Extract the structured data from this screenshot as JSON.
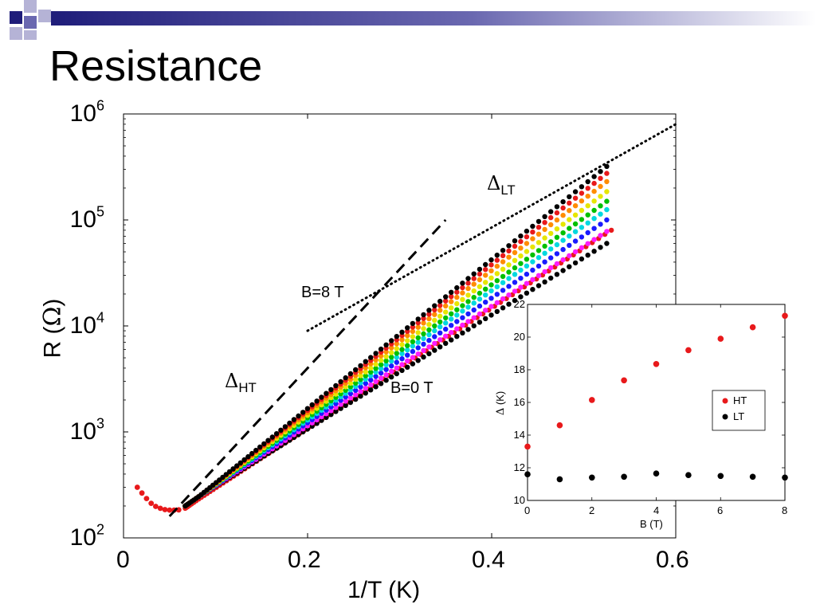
{
  "slide": {
    "title": "Resistance",
    "header_colors": [
      "#1f1d7a",
      "#6a68b0",
      "#b5b3d6"
    ]
  },
  "chart_data": [
    {
      "type": "scatter",
      "title": "",
      "xlabel": "1/T (K)",
      "ylabel_text": "R (",
      "ylabel_symbol": "Ω",
      "ylabel_close": ")",
      "xlim": [
        0,
        0.6
      ],
      "ylim": [
        100,
        1000000
      ],
      "y_scale": "log",
      "grid": false,
      "x_ticks": [
        "0",
        "0.2",
        "0.4",
        "0.6"
      ],
      "x_tick_values": [
        0,
        0.2,
        0.4,
        0.6
      ],
      "y_ticks": [
        {
          "base": "10",
          "exp": "2",
          "value": 100
        },
        {
          "base": "10",
          "exp": "3",
          "value": 1000
        },
        {
          "base": "10",
          "exp": "4",
          "value": 10000
        },
        {
          "base": "10",
          "exp": "5",
          "value": 100000
        },
        {
          "base": "10",
          "exp": "6",
          "value": 1000000
        }
      ],
      "annotations": {
        "b8": "B=8 T",
        "b0": "B=0 T",
        "delta_symbol": "Δ",
        "ht": "HT",
        "lt": "LT"
      },
      "fit_lines": [
        {
          "style": "dotted",
          "x": [
            0.2,
            0.6
          ],
          "y": [
            9000,
            800000
          ]
        },
        {
          "style": "dashed",
          "x": [
            0.05,
            0.35
          ],
          "y": [
            160,
            100000
          ]
        }
      ],
      "low_t_upturn": {
        "color": "#e8191b",
        "x": [
          0.015,
          0.02,
          0.025,
          0.03,
          0.035,
          0.04,
          0.045,
          0.05,
          0.055,
          0.06
        ],
        "y": [
          300,
          265,
          235,
          212,
          198,
          190,
          185,
          183,
          183,
          184
        ]
      },
      "series": [
        {
          "color": "#000000",
          "x_start": 0.067,
          "x_end": 0.525,
          "r_start": 200,
          "r_end": 320000
        },
        {
          "color": "#e8191b",
          "x_start": 0.067,
          "x_end": 0.525,
          "r_start": 200,
          "r_end": 275000
        },
        {
          "color": "#ff8c00",
          "x_start": 0.067,
          "x_end": 0.525,
          "r_start": 200,
          "r_end": 230000
        },
        {
          "color": "#e6e600",
          "x_start": 0.067,
          "x_end": 0.525,
          "r_start": 200,
          "r_end": 185000
        },
        {
          "color": "#00c000",
          "x_start": 0.067,
          "x_end": 0.525,
          "r_start": 200,
          "r_end": 150000
        },
        {
          "color": "#00d8e0",
          "x_start": 0.067,
          "x_end": 0.525,
          "r_start": 200,
          "r_end": 125000
        },
        {
          "color": "#1a1aff",
          "x_start": 0.067,
          "x_end": 0.525,
          "r_start": 200,
          "r_end": 100000
        },
        {
          "color": "#ff1aff",
          "x_start": 0.067,
          "x_end": 0.525,
          "r_start": 200,
          "r_end": 78000
        },
        {
          "color": "#000000",
          "x_start": 0.067,
          "x_end": 0.525,
          "r_start": 200,
          "r_end": 60000
        },
        {
          "color": "#e8191b",
          "x_start": 0.067,
          "x_end": 0.53,
          "r_start": 190,
          "r_end": 80000
        }
      ]
    },
    {
      "type": "scatter",
      "title": "",
      "xlabel": "B (T)",
      "ylabel_symbol": "Δ",
      "ylabel_text": " (K)",
      "xlim": [
        0,
        8
      ],
      "ylim": [
        10,
        22
      ],
      "x_ticks": [
        "0",
        "2",
        "4",
        "6",
        "8"
      ],
      "x_tick_values": [
        0,
        2,
        4,
        6,
        8
      ],
      "y_ticks": [
        "10",
        "12",
        "14",
        "16",
        "18",
        "20",
        "22"
      ],
      "y_tick_values": [
        10,
        12,
        14,
        16,
        18,
        20,
        22
      ],
      "legend_position": "right",
      "series": [
        {
          "name": "HT",
          "color": "#e8191b",
          "x": [
            0,
            1,
            2,
            3,
            4,
            5,
            6,
            7,
            8
          ],
          "y": [
            13.3,
            14.6,
            16.15,
            17.35,
            18.35,
            19.2,
            19.9,
            20.6,
            21.3
          ]
        },
        {
          "name": "LT",
          "color": "#000000",
          "x": [
            0,
            1,
            2,
            3,
            4,
            5,
            6,
            7,
            8
          ],
          "y": [
            11.6,
            11.3,
            11.4,
            11.45,
            11.65,
            11.55,
            11.5,
            11.45,
            11.4
          ]
        }
      ]
    }
  ]
}
